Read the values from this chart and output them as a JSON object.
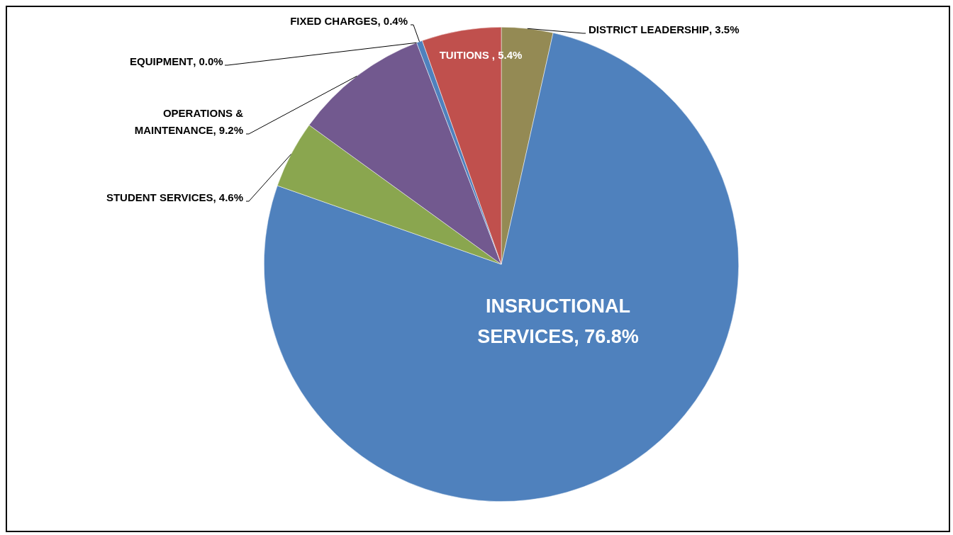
{
  "chart_data": {
    "type": "pie",
    "categories": [
      "DISTRICT LEADERSHIP",
      "INSRUCTIONAL SERVICES",
      "STUDENT SERVICES",
      "OPERATIONS & MAINTENANCE",
      "EQUIPMENT",
      "FIXED CHARGES",
      "TUITIONS "
    ],
    "values": [
      3.5,
      76.8,
      4.6,
      9.2,
      0.0,
      0.4,
      5.4
    ],
    "colors": [
      "#948a54",
      "#4f81bd",
      "#8aa64f",
      "#72598f",
      "#f79646",
      "#4f81bd",
      "#c0504d"
    ],
    "value_labels": [
      ", 3.5%",
      ", 76.8%",
      ", 4.6%",
      ", 9.2%",
      ", 0.0%",
      ", 0.4%",
      ", 5.4%"
    ],
    "legend": false
  }
}
